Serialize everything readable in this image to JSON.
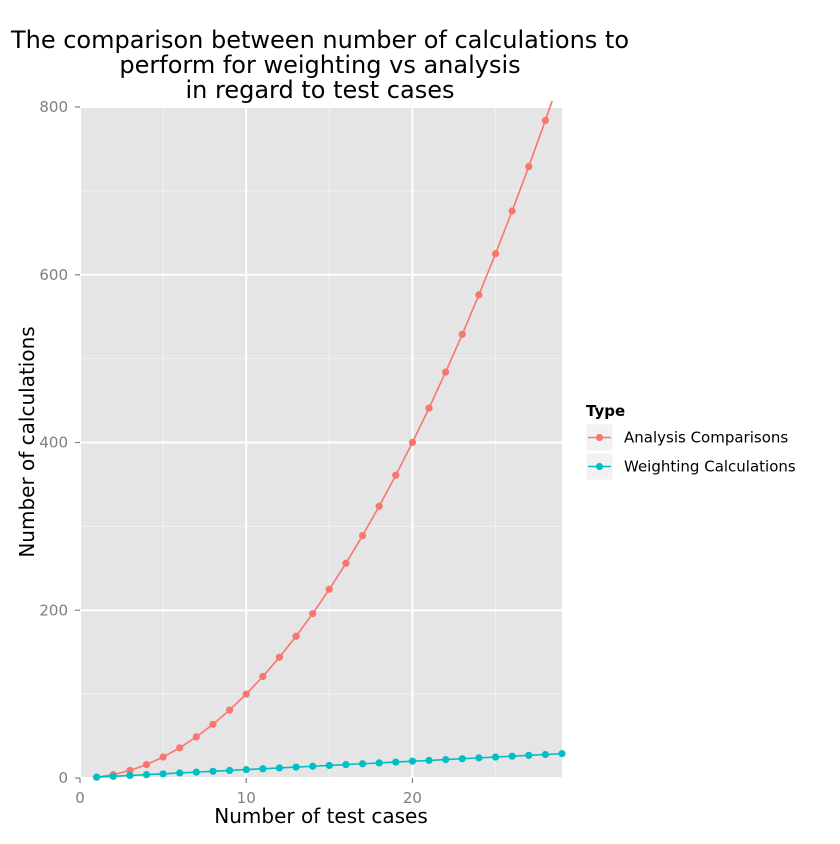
{
  "chart_data": {
    "type": "line",
    "title": "The comparison between number of calculations to\nperform for weighting vs analysis\nin regard to test cases",
    "xlabel": "Number of test cases",
    "ylabel": "Number of calculations",
    "xlim": [
      0,
      29
    ],
    "ylim": [
      0,
      800
    ],
    "x_ticks": [
      0,
      10,
      20
    ],
    "y_ticks": [
      0,
      200,
      400,
      600,
      800
    ],
    "grid": true,
    "legend": {
      "title": "Type",
      "placement": "right"
    },
    "x": [
      1,
      2,
      3,
      4,
      5,
      6,
      7,
      8,
      9,
      10,
      11,
      12,
      13,
      14,
      15,
      16,
      17,
      18,
      19,
      20,
      21,
      22,
      23,
      24,
      25,
      26,
      27,
      28,
      29
    ],
    "series": [
      {
        "name": "Analysis Comparisons",
        "color": "#F8766D",
        "values": [
          1,
          4,
          9,
          16,
          25,
          36,
          49,
          64,
          81,
          100,
          121,
          144,
          169,
          196,
          225,
          256,
          289,
          324,
          361,
          400,
          441,
          484,
          529,
          576,
          625,
          676,
          729,
          784,
          841
        ]
      },
      {
        "name": "Weighting Calculations",
        "color": "#00BFC4",
        "values": [
          1,
          2,
          3,
          4,
          5,
          6,
          7,
          8,
          9,
          10,
          11,
          12,
          13,
          14,
          15,
          16,
          17,
          18,
          19,
          20,
          21,
          22,
          23,
          24,
          25,
          26,
          27,
          28,
          29
        ]
      }
    ]
  }
}
